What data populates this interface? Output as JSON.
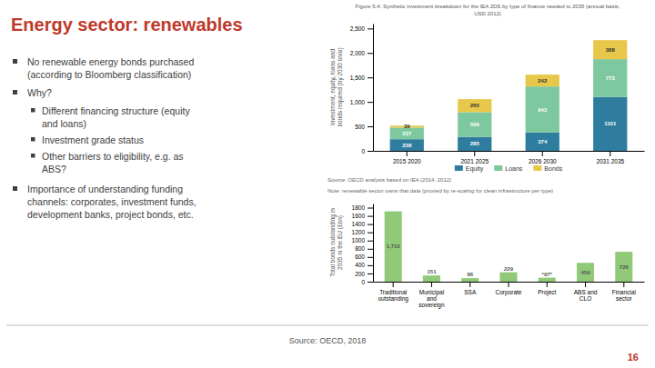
{
  "title": "Energy sector: renewables",
  "bullets": [
    {
      "text": "No renewable energy bonds purchased\n(according to Bloomberg classification)"
    },
    {
      "text": "Why?",
      "items": [
        "Different financing structure (equity\nand loans)",
        "Investment grade status",
        "Other barriers to eligibility, e.g. as\nABS?"
      ]
    },
    {
      "text": "Importance of understanding funding\nchannels: corporates, investment funds,\ndevelopment banks, project bonds, etc."
    }
  ],
  "footer": "Source: OECD, 2018",
  "page_number": "16",
  "chart_data": [
    {
      "type": "bar",
      "title": "Figure 5.4. Synthetic investment breakdown for the IEA 2DS by type of finance needed to 2035 (annual basis,\nUSD 2012)",
      "categories": [
        "2015 2020",
        "2021 2025",
        "2026 2030",
        "2031 2035"
      ],
      "series": [
        {
          "name": "Equity",
          "color": "#2e7d9e",
          "values": [
            238,
            285,
            374,
            1101
          ]
        },
        {
          "name": "Loans",
          "color": "#7ec8a0",
          "values": [
            237,
            506,
            942,
            773
          ]
        },
        {
          "name": "Bonds",
          "color": "#e8c84a",
          "values": [
            39,
            265,
            242,
            388
          ]
        }
      ],
      "stacked": true,
      "data_labels": true,
      "ylabel": "Investment, equity, loans and\nbonds required (by 2030 bn/a)",
      "ylim": [
        0,
        2600
      ],
      "yticks": [
        0,
        500,
        {
          "value": 1000,
          "label": "1,000"
        },
        {
          "value": 1500,
          "label": "1,500"
        },
        {
          "value": 2000,
          "label": "2,000"
        },
        {
          "value": 2500,
          "label": "2,500"
        }
      ],
      "grid": false,
      "legend": "bottom",
      "annotations": [
        "Source: OECD analysis based on IEA (2014, 2012)"
      ]
    },
    {
      "type": "bar",
      "categories": [
        "Traditional\noutstanding",
        "Municipal\nand\nsovereign",
        "SSA",
        "Corporate",
        "Project",
        "ABS and\nCLO",
        "Financial\nsector"
      ],
      "values": [
        1710,
        151,
        86,
        229,
        97,
        459,
        726
      ],
      "value_labels": [
        "1,710",
        "151",
        "86",
        "229",
        "*97*",
        "459",
        "726"
      ],
      "color": "#90c978",
      "data_labels": true,
      "ylabel": "Total bonds outstanding in\n2035 in the EU (£bn)",
      "ylim": [
        0,
        1900
      ],
      "yticks": [
        0,
        200,
        400,
        600,
        800,
        1000,
        1200,
        1400,
        1600,
        1800
      ],
      "grid": false,
      "annotations": [
        "Note: renewable sector owns that data (proxied by re-scaling for clean infrastructure per type)"
      ]
    }
  ]
}
